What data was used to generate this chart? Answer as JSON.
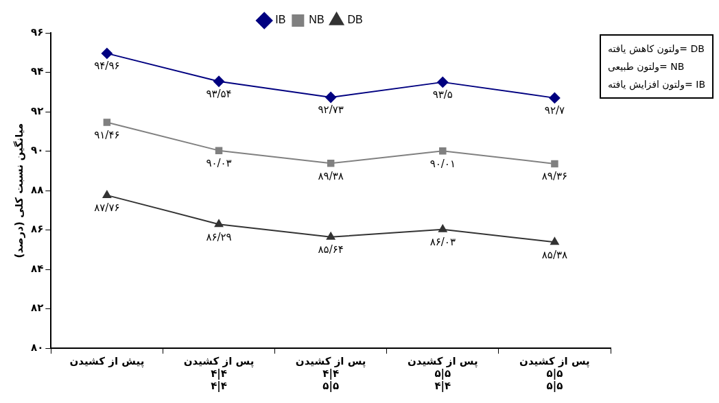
{
  "chart_data": {
    "type": "line",
    "ylabel": "میانگین نسبت کلی (درصد)",
    "categories": [
      "پیش از کشیدن",
      "پس از کشیدن\n۴|۴\n۴|۴",
      "پس از کشیدن\n۴|۴\n۵|۵",
      "پس از کشیدن\n۵|۵\n۴|۴",
      "پس از کشیدن\n۵|۵\n۵|۵"
    ],
    "series": [
      {
        "name": "IB",
        "color": "#000080",
        "marker": "diamond",
        "values": [
          94.96,
          93.54,
          92.73,
          93.5,
          92.7
        ],
        "value_labels": [
          "۹۴/۹۶",
          "۹۳/۵۴",
          "۹۲/۷۳",
          "۹۳/۵",
          "۹۲/۷"
        ]
      },
      {
        "name": "NB",
        "color": "#808080",
        "marker": "square",
        "values": [
          91.46,
          90.03,
          89.38,
          90.01,
          89.36
        ],
        "value_labels": [
          "۹۱/۴۶",
          "۹۰/۰۳",
          "۸۹/۳۸",
          "۹۰/۰۱",
          "۸۹/۳۶"
        ]
      },
      {
        "name": "DB",
        "color": "#333333",
        "marker": "triangle",
        "values": [
          87.76,
          86.29,
          85.64,
          86.03,
          85.38
        ],
        "value_labels": [
          "۸۷/۷۶",
          "۸۶/۲۹",
          "۸۵/۶۴",
          "۸۶/۰۳",
          "۸۵/۳۸"
        ]
      }
    ],
    "ylim": [
      80,
      96
    ],
    "yticks": [
      {
        "value": 80,
        "label": "۸۰"
      },
      {
        "value": 82,
        "label": "۸۲"
      },
      {
        "value": 84,
        "label": "۸۴"
      },
      {
        "value": 86,
        "label": "۸۶"
      },
      {
        "value": 88,
        "label": "۸۸"
      },
      {
        "value": 90,
        "label": "۹۰"
      },
      {
        "value": 92,
        "label": "۹۲"
      },
      {
        "value": 94,
        "label": "۹۴"
      },
      {
        "value": 96,
        "label": "۹۶"
      }
    ],
    "legend": "top",
    "annotations": [
      "ولتون کاهش یافته= DB",
      "ولتون طبیعی= NB",
      "ولتون افزایش یافته= IB"
    ]
  }
}
